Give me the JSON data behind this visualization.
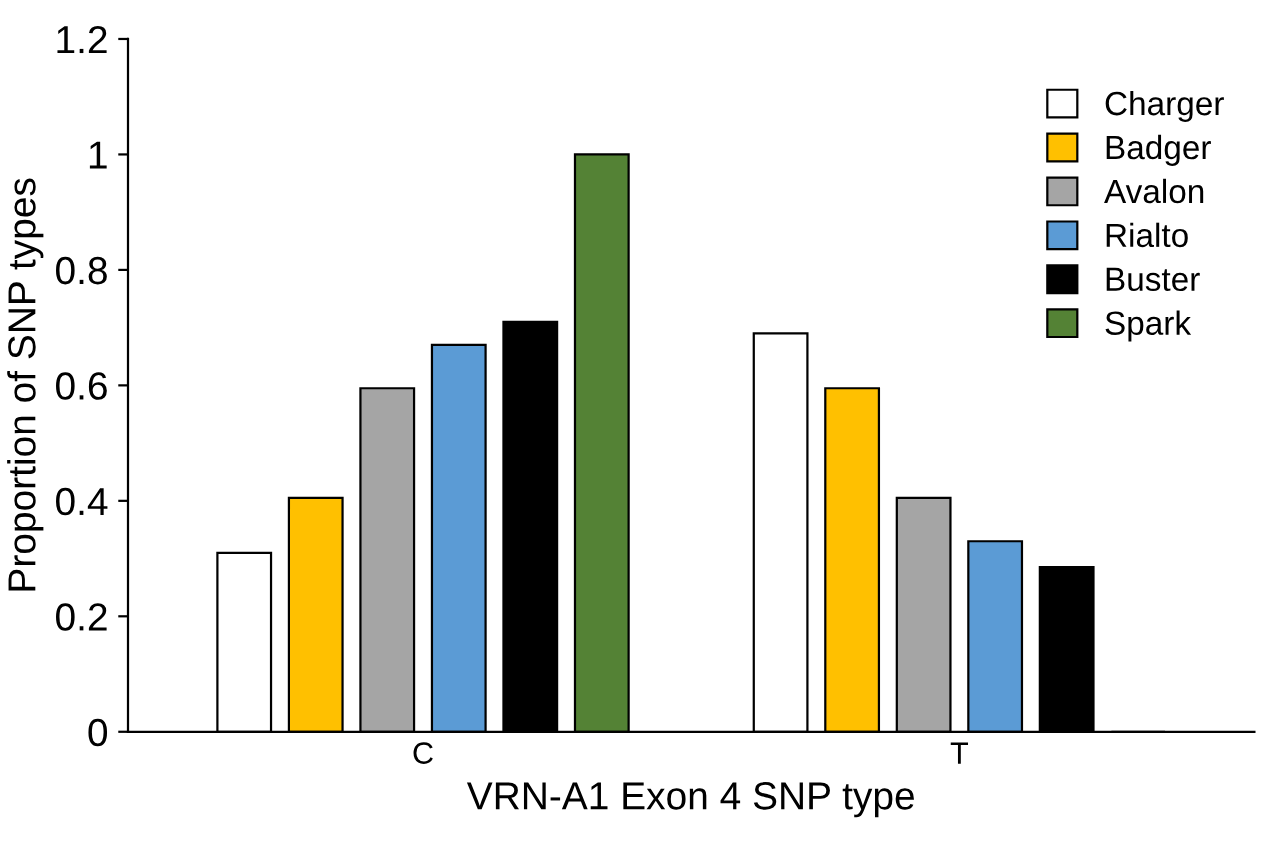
{
  "chart_data": {
    "type": "bar",
    "xlabel": "VRN-A1 Exon 4 SNP type",
    "ylabel": "Proportion of SNP types",
    "categories": [
      "C",
      "T"
    ],
    "series": [
      {
        "name": "Charger",
        "color": "#ffffff",
        "values": [
          0.31,
          0.69
        ]
      },
      {
        "name": "Badger",
        "color": "#ffc000",
        "values": [
          0.405,
          0.595
        ]
      },
      {
        "name": "Avalon",
        "color": "#a5a5a5",
        "values": [
          0.595,
          0.405
        ]
      },
      {
        "name": "Rialto",
        "color": "#5b9bd5",
        "values": [
          0.67,
          0.33
        ]
      },
      {
        "name": "Buster",
        "color": "#000000",
        "values": [
          0.71,
          0.285
        ]
      },
      {
        "name": "Spark",
        "color": "#548235",
        "values": [
          1.0,
          0
        ]
      }
    ],
    "ylim": [
      0,
      1.2
    ],
    "yticks": [
      0,
      0.2,
      0.4,
      0.6,
      0.8,
      1,
      1.2
    ],
    "grid": false,
    "legend": "top right"
  }
}
